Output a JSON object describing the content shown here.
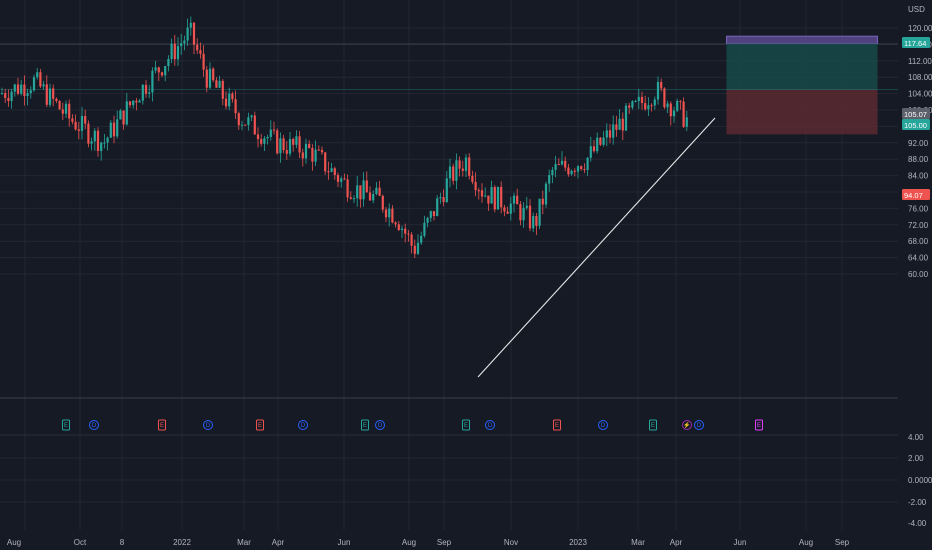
{
  "colors": {
    "background": "#161a25",
    "grid": "#232734",
    "up": "#26a69a",
    "down": "#ef5350",
    "profit_zone": "#174a49",
    "loss_zone": "#5a2a30",
    "target_box": "#5a4a8e",
    "trendline": "#e8e8e8",
    "earnings": "#26a69a",
    "earnings_miss": "#ef5350",
    "dividend": "#2962ff",
    "split": "#9c27b0",
    "future": "#e040fb"
  },
  "price_axis": {
    "currency": "USD",
    "ticks": [
      "120.00",
      "116.00",
      "112.00",
      "108.00",
      "104.00",
      "100.00",
      "96.00",
      "92.00",
      "88.00",
      "84.00",
      "80.00",
      "76.00",
      "72.00",
      "68.00",
      "64.00",
      "60.00"
    ]
  },
  "oscillator_axis": {
    "ticks": [
      "4.00",
      "2.00",
      "0.0000",
      "-2.00",
      "-4.00"
    ]
  },
  "time_axis": {
    "labels": [
      "Aug",
      "Oct",
      "8",
      "2022",
      "Mar",
      "Apr",
      "Jun",
      "Aug",
      "Sep",
      "Nov",
      "2023",
      "Mar",
      "Apr",
      "Jun",
      "Aug",
      "Sep"
    ]
  },
  "price_badges": {
    "target": "117.64",
    "current": "105.07",
    "entry": "105.00",
    "stop": "94.07"
  },
  "events": [
    {
      "type": "earnings",
      "label": "E"
    },
    {
      "type": "dividend",
      "label": "D"
    },
    {
      "type": "earnings_miss",
      "label": "E"
    },
    {
      "type": "dividend",
      "label": "D"
    },
    {
      "type": "earnings_miss",
      "label": "E"
    },
    {
      "type": "dividend",
      "label": "D"
    },
    {
      "type": "earnings",
      "label": "E"
    },
    {
      "type": "dividend",
      "label": "D"
    },
    {
      "type": "earnings",
      "label": "E"
    },
    {
      "type": "dividend",
      "label": "D"
    },
    {
      "type": "earnings_miss",
      "label": "E"
    },
    {
      "type": "dividend",
      "label": "D"
    },
    {
      "type": "earnings",
      "label": "E"
    },
    {
      "type": "split",
      "label": "⚡"
    },
    {
      "type": "dividend",
      "label": "D"
    },
    {
      "type": "future",
      "label": "E"
    }
  ],
  "chart_data": {
    "type": "candlestick",
    "currency": "USD",
    "x_range": [
      "2021-07",
      "2023-09"
    ],
    "ylim": [
      60,
      122
    ],
    "lower_pane_ylim": [
      -5,
      5
    ],
    "anchors": [
      {
        "date": "2021-07",
        "price": 104
      },
      {
        "date": "2021-08",
        "price": 107
      },
      {
        "date": "2021-09",
        "price": 98
      },
      {
        "date": "2021-10",
        "price": 92
      },
      {
        "date": "2021-11",
        "price": 104
      },
      {
        "date": "2021-12",
        "price": 114
      },
      {
        "date": "2021-12",
        "price": 119
      },
      {
        "date": "2022-01",
        "price": 108
      },
      {
        "date": "2022-02",
        "price": 98
      },
      {
        "date": "2022-03",
        "price": 92
      },
      {
        "date": "2022-04",
        "price": 90
      },
      {
        "date": "2022-05",
        "price": 82
      },
      {
        "date": "2022-06",
        "price": 78
      },
      {
        "date": "2022-06",
        "price": 74
      },
      {
        "date": "2022-07",
        "price": 66
      },
      {
        "date": "2022-07",
        "price": 74
      },
      {
        "date": "2022-08",
        "price": 83
      },
      {
        "date": "2022-08",
        "price": 88
      },
      {
        "date": "2022-09",
        "price": 80
      },
      {
        "date": "2022-10",
        "price": 76
      },
      {
        "date": "2022-10",
        "price": 72
      },
      {
        "date": "2022-11",
        "price": 85
      },
      {
        "date": "2022-12",
        "price": 88
      },
      {
        "date": "2023-01",
        "price": 97
      },
      {
        "date": "2023-02",
        "price": 105
      },
      {
        "date": "2023-02",
        "price": 101
      },
      {
        "date": "2023-03",
        "price": 97
      },
      {
        "date": "2023-03",
        "price": 104
      },
      {
        "date": "2023-04",
        "price": 104
      }
    ],
    "trendline": {
      "from": {
        "date": "2022-09",
        "price": 66
      },
      "to": {
        "date": "2023-04",
        "price": 105
      }
    },
    "long_position": {
      "entry": 105.0,
      "target": 117.64,
      "stop": 94.07,
      "upper_box_top": 118.0,
      "upper_box_bottom": 116.2
    },
    "current_price": 105.07
  }
}
